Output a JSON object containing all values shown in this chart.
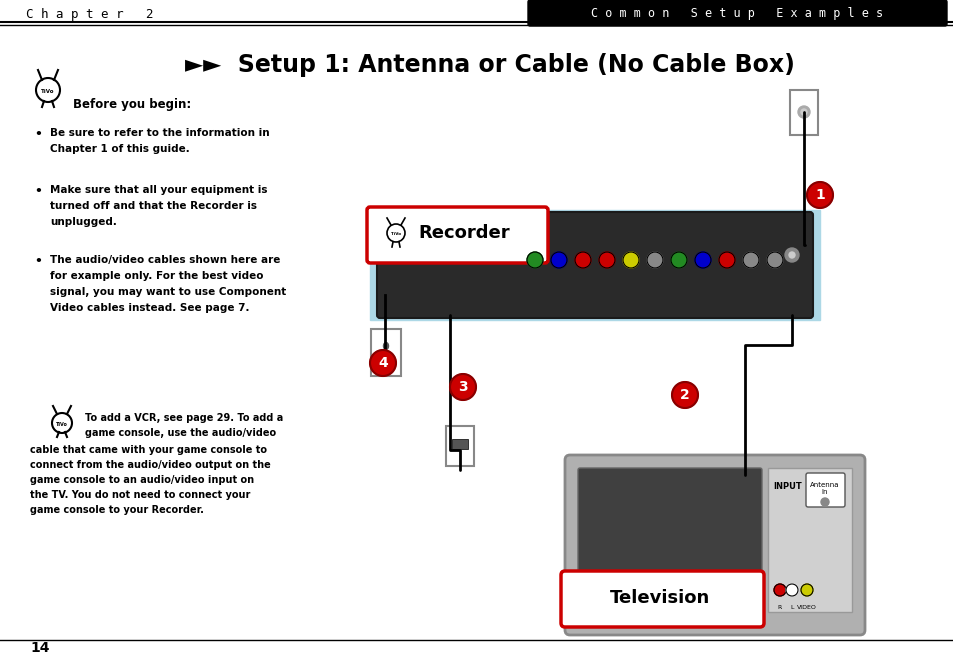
{
  "page_bg": "#ffffff",
  "header_bg": "#000000",
  "header_left_text": "C h a p t e r   2",
  "header_right_text": "C o m m o n   S e t u p   E x a m p l e s",
  "title": "►►  Setup 1: Antenna or Cable (No Cable Box)",
  "before_you_begin": "Before you begin:",
  "bullets": [
    "Be sure to refer to the information in\nChapter 1 of this guide.",
    "Make sure that all your equipment is\nturned off and that the Recorder is\nunplugged.",
    "The audio/video cables shown here are\nfor example only. For the best video\nsignal, you may want to use Component\nVideo cables instead. See page 7."
  ],
  "note_text": "To add a VCR, see page 29. To add a\ngame console, use the audio/video\ncable that came with your game console to\nconnect from the audio/video output on the\ngame console to an audio/video input on\nthe TV. You do not need to connect your\ngame console to your Recorder.",
  "page_number": "14",
  "recorder_label": "Recorder",
  "television_label": "Television",
  "recorder_box_color": "#add8e6",
  "recorder_border_color": "#cc0000",
  "television_box_color": "#c0c0c0",
  "television_border_color": "#cc0000",
  "circle_colors": [
    "#cc0000",
    "#cc0000",
    "#cc0000",
    "#cc0000"
  ],
  "circle_labels": [
    "1",
    "2",
    "3",
    "4"
  ],
  "cable_color": "#000000",
  "connector_color": "#ff0000"
}
